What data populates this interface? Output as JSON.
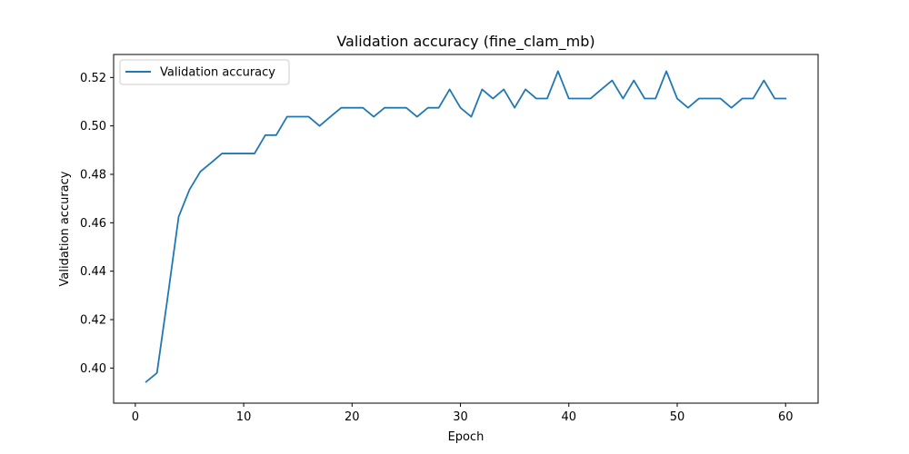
{
  "chart_data": {
    "type": "line",
    "title": "Validation accuracy (fine_clam_mb)",
    "xlabel": "Epoch",
    "ylabel": "Validation accuracy",
    "xlim": [
      -2,
      63
    ],
    "ylim": [
      0.3855,
      0.5295
    ],
    "xticks": [
      0,
      10,
      20,
      30,
      40,
      50,
      60
    ],
    "yticks": [
      0.4,
      0.42,
      0.44,
      0.46,
      0.48,
      0.5,
      0.52
    ],
    "ytick_labels": [
      "0.40",
      "0.42",
      "0.44",
      "0.46",
      "0.48",
      "0.50",
      "0.52"
    ],
    "grid": false,
    "legend_position": "top-left",
    "series": [
      {
        "name": "Validation accuracy",
        "color": "#1f77b4",
        "x": [
          1,
          2,
          3,
          4,
          5,
          6,
          7,
          8,
          9,
          10,
          11,
          12,
          13,
          14,
          15,
          16,
          17,
          18,
          19,
          20,
          21,
          22,
          23,
          24,
          25,
          26,
          27,
          28,
          29,
          30,
          31,
          32,
          33,
          34,
          35,
          36,
          37,
          38,
          39,
          40,
          41,
          42,
          43,
          44,
          45,
          46,
          47,
          48,
          49,
          50,
          51,
          52,
          53,
          54,
          55,
          56,
          57,
          58,
          59,
          60
        ],
        "y": [
          0.3943,
          0.398,
          0.4297,
          0.4625,
          0.4737,
          0.4811,
          0.4848,
          0.4886,
          0.4886,
          0.4886,
          0.4886,
          0.4962,
          0.4962,
          0.5038,
          0.5038,
          0.5038,
          0.5,
          0.5038,
          0.5075,
          0.5075,
          0.5075,
          0.5038,
          0.5075,
          0.5075,
          0.5075,
          0.5038,
          0.5075,
          0.5075,
          0.5151,
          0.5075,
          0.5038,
          0.5151,
          0.5113,
          0.5151,
          0.5075,
          0.5151,
          0.5113,
          0.5113,
          0.5226,
          0.5113,
          0.5113,
          0.5113,
          0.5151,
          0.5188,
          0.5113,
          0.5188,
          0.5113,
          0.5113,
          0.5226,
          0.5113,
          0.5075,
          0.5113,
          0.5113,
          0.5113,
          0.5075,
          0.5113,
          0.5113,
          0.5188,
          0.5113,
          0.5113
        ]
      }
    ]
  }
}
